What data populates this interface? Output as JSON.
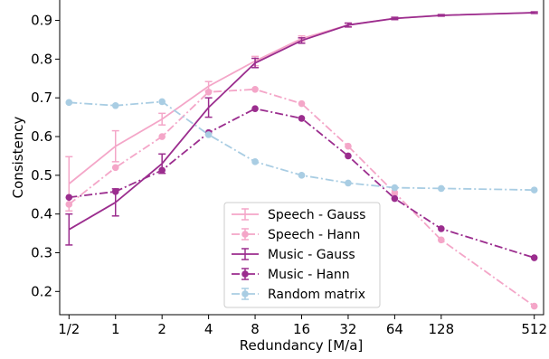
{
  "chart_data": {
    "type": "line",
    "title": "",
    "xlabel": "Redundancy [M/a]",
    "ylabel": "Consistency",
    "x_scale": "log2",
    "x": [
      0.5,
      1,
      2,
      4,
      8,
      16,
      32,
      64,
      128,
      512
    ],
    "x_tick_labels": [
      "1/2",
      "1",
      "2",
      "4",
      "8",
      "16",
      "32",
      "64",
      "128",
      "512"
    ],
    "y_ticks": [
      "0.2",
      "0.3",
      "0.4",
      "0.5",
      "0.6",
      "0.7",
      "0.8",
      "0.9"
    ],
    "ylim": [
      0.14,
      0.955
    ],
    "grid": false,
    "legend_position": "lower-center",
    "series": [
      {
        "name": "Speech - Gauss",
        "color": "#f4a6c8",
        "style": "solid",
        "marker": "none",
        "values": [
          0.478,
          0.575,
          0.645,
          0.73,
          0.795,
          0.853,
          0.888,
          0.905,
          0.913,
          0.92
        ],
        "errors": [
          0.07,
          0.04,
          0.015,
          0.012,
          0.012,
          0.007,
          0.005,
          0.003,
          0.002,
          0.002
        ]
      },
      {
        "name": "Speech - Hann",
        "color": "#f4a6c8",
        "style": "dashdot",
        "marker": "circle",
        "values": [
          0.425,
          0.52,
          0.6,
          0.715,
          0.722,
          0.685,
          0.575,
          0.455,
          0.333,
          0.162
        ]
      },
      {
        "name": "Music - Gauss",
        "color": "#9b2d8e",
        "style": "solid",
        "marker": "none",
        "values": [
          0.36,
          0.43,
          0.53,
          0.675,
          0.79,
          0.848,
          0.888,
          0.905,
          0.913,
          0.92
        ],
        "errors": [
          0.04,
          0.035,
          0.025,
          0.025,
          0.012,
          0.007,
          0.005,
          0.003,
          0.002,
          0.002
        ]
      },
      {
        "name": "Music - Hann",
        "color": "#9b2d8e",
        "style": "dashdot",
        "marker": "circle",
        "values": [
          0.443,
          0.458,
          0.513,
          0.61,
          0.672,
          0.647,
          0.55,
          0.44,
          0.362,
          0.287
        ]
      },
      {
        "name": "Random matrix",
        "color": "#a9cde3",
        "style": "dashdot",
        "marker": "circle",
        "values": [
          0.688,
          0.68,
          0.69,
          0.605,
          0.535,
          0.5,
          0.48,
          0.468,
          0.466,
          0.462
        ]
      }
    ]
  }
}
